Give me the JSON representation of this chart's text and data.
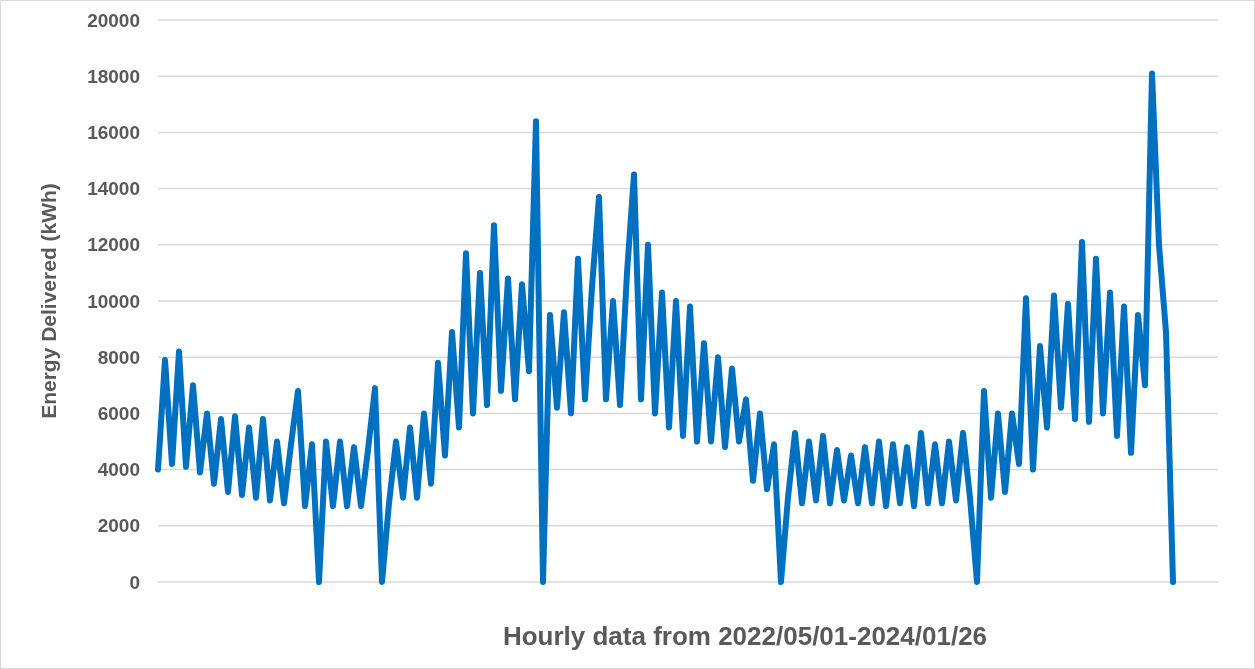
{
  "chart_data": {
    "type": "line",
    "xlabel": "Hourly data from 2022/05/01-2024/01/26",
    "ylabel": "Energy Delivered (kWh)",
    "categories": [
      null,
      null,
      null,
      null,
      null,
      null,
      null,
      null,
      null,
      null,
      null,
      null,
      null,
      null,
      null,
      null,
      null,
      null,
      null,
      null,
      null,
      null,
      null,
      null,
      null,
      null,
      null,
      null,
      null,
      null,
      null,
      null,
      null,
      null,
      null,
      null,
      null,
      null,
      null,
      null,
      null,
      null,
      null,
      null,
      null,
      null,
      null,
      null,
      null,
      null,
      null,
      null,
      null,
      null,
      null,
      null,
      null,
      null,
      null,
      null,
      null,
      null,
      null,
      null,
      null,
      null,
      null,
      null,
      null,
      null,
      null,
      null,
      null,
      null,
      null,
      null,
      null,
      null,
      null,
      null,
      null,
      null,
      null,
      null,
      null,
      null,
      null,
      null,
      null,
      null,
      null,
      null,
      null,
      null,
      null,
      null,
      null,
      null,
      null,
      null,
      null,
      null,
      null,
      null,
      null,
      null,
      null,
      null,
      null,
      null,
      null,
      null,
      null,
      null,
      null,
      null,
      null,
      null,
      null,
      null,
      null,
      null,
      null,
      null,
      null,
      null,
      null,
      null,
      null,
      null,
      null,
      null,
      null,
      null,
      null,
      null,
      null,
      null,
      null,
      null,
      null,
      null,
      null,
      null,
      null,
      null,
      null,
      null,
      null,
      null,
      null,
      null
    ],
    "series": [
      {
        "color": "#0070c0",
        "values": [
          4000,
          7900,
          4200,
          8200,
          4100,
          7000,
          3900,
          6000,
          3500,
          5800,
          3200,
          5900,
          3100,
          5500,
          3000,
          5800,
          2900,
          5000,
          2800,
          4900,
          6800,
          2700,
          4900,
          0,
          5000,
          2700,
          5000,
          2700,
          4800,
          2700,
          4700,
          6900,
          0,
          2800,
          5000,
          3000,
          5500,
          3000,
          6000,
          3500,
          7800,
          4500,
          8900,
          5500,
          11700,
          6000,
          11000,
          6300,
          12700,
          6800,
          10800,
          6500,
          10600,
          7500,
          16400,
          0,
          9500,
          6200,
          9600,
          6000,
          11500,
          6500,
          10500,
          13700,
          6500,
          10000,
          6300,
          11000,
          14500,
          6500,
          12000,
          6000,
          10300,
          5500,
          10000,
          5200,
          9800,
          5000,
          8500,
          5000,
          8000,
          4800,
          7600,
          5000,
          6500,
          3600,
          6000,
          3300,
          4900,
          0,
          3000,
          5300,
          2800,
          5000,
          2900,
          5200,
          2800,
          4700,
          2900,
          4500,
          2800,
          4800,
          2800,
          5000,
          2700,
          4900,
          2800,
          4800,
          2700,
          5300,
          2800,
          4900,
          2800,
          5000,
          2900,
          5300,
          3000,
          0,
          6800,
          3000,
          6000,
          3200,
          6000,
          4200,
          10100,
          4000,
          8400,
          5500,
          10200,
          6200,
          9900,
          5800,
          12100,
          5700,
          11500,
          6000,
          10300,
          5200,
          9800,
          4600,
          9500,
          7000,
          18100,
          12000,
          8900,
          0,
          null,
          null,
          null,
          null,
          null,
          null
        ]
      }
    ],
    "ylim": [
      0,
      20000
    ],
    "yticks": [
      0,
      2000,
      4000,
      6000,
      8000,
      10000,
      12000,
      14000,
      16000,
      18000,
      20000
    ],
    "grid": "y",
    "tick_labels": "y",
    "marker": "none",
    "line_style": "solid"
  }
}
